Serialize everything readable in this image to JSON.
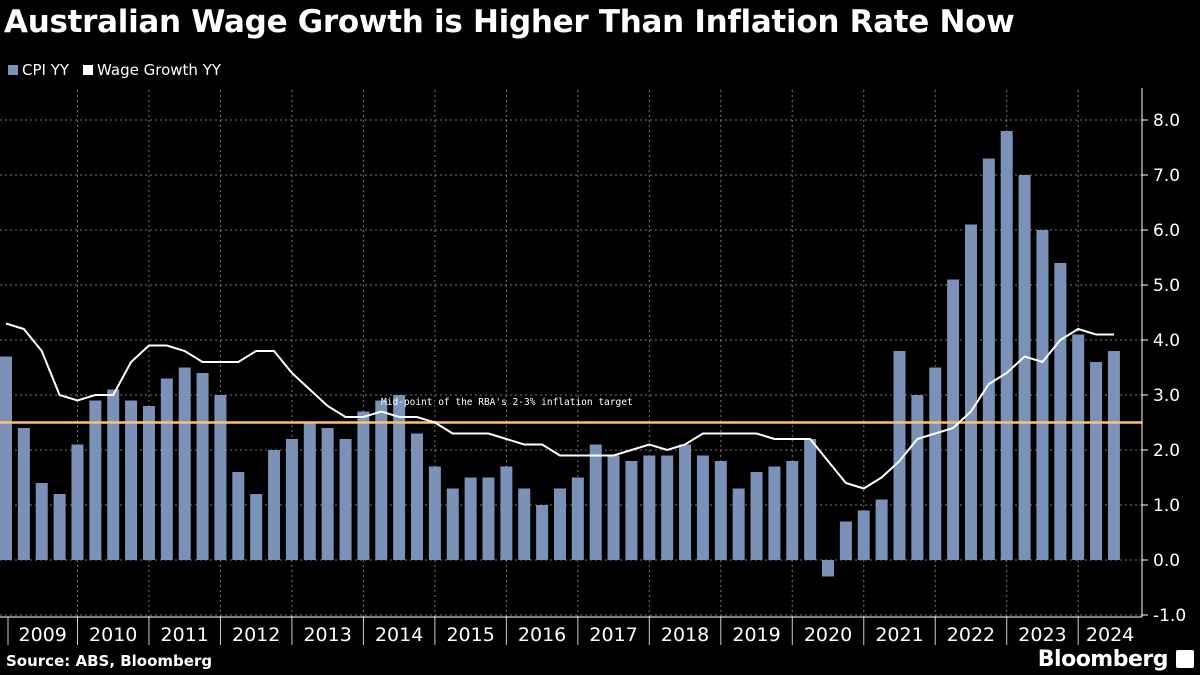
{
  "chart_data": {
    "type": "bar",
    "title": "Australian Wage Growth is Higher Than Inflation Rate Now",
    "source": "Source: ABS, Bloomberg",
    "brand": "Bloomberg",
    "year_labels": [
      "2009",
      "2010",
      "2011",
      "2012",
      "2013",
      "2014",
      "2015",
      "2016",
      "2017",
      "2018",
      "2019",
      "2020",
      "2021",
      "2022",
      "2023",
      "2024"
    ],
    "y_ticks": [
      "-1.0",
      "0.0",
      "1.0",
      "2.0",
      "3.0",
      "4.0",
      "5.0",
      "6.0",
      "7.0",
      "8.0"
    ],
    "ylim": [
      -1.0,
      8.5
    ],
    "grid": true,
    "legend_position": "top-left",
    "annotation": {
      "text": "Mid-point of the RBA's 2-3% inflation target",
      "value": 2.5
    },
    "x_range": [
      "2008 Q4",
      "2024 Q2"
    ],
    "series": [
      {
        "name": "CPI YY",
        "type": "bar",
        "color": "#7b91b8",
        "values": [
          3.7,
          2.4,
          1.4,
          1.2,
          2.1,
          2.9,
          3.1,
          2.9,
          2.8,
          3.3,
          3.5,
          3.4,
          3.0,
          1.6,
          1.2,
          2.0,
          2.2,
          2.5,
          2.4,
          2.2,
          2.7,
          2.9,
          3.0,
          2.3,
          1.7,
          1.3,
          1.5,
          1.5,
          1.7,
          1.3,
          1.0,
          1.3,
          1.5,
          2.1,
          1.9,
          1.8,
          1.9,
          1.9,
          2.1,
          1.9,
          1.8,
          1.3,
          1.6,
          1.7,
          1.8,
          2.2,
          -0.3,
          0.7,
          0.9,
          1.1,
          3.8,
          3.0,
          3.5,
          5.1,
          6.1,
          7.3,
          7.8,
          7.0,
          6.0,
          5.4,
          4.1,
          3.6,
          3.8
        ]
      },
      {
        "name": "Wage Growth YY",
        "type": "line",
        "color": "#ffffff",
        "values": [
          4.3,
          4.2,
          3.8,
          3.0,
          2.9,
          3.0,
          3.0,
          3.6,
          3.9,
          3.9,
          3.8,
          3.6,
          3.6,
          3.6,
          3.8,
          3.8,
          3.4,
          3.1,
          2.8,
          2.6,
          2.6,
          2.7,
          2.6,
          2.6,
          2.5,
          2.3,
          2.3,
          2.3,
          2.2,
          2.1,
          2.1,
          1.9,
          1.9,
          1.9,
          1.9,
          2.0,
          2.1,
          2.0,
          2.1,
          2.3,
          2.3,
          2.3,
          2.3,
          2.2,
          2.2,
          2.2,
          1.8,
          1.4,
          1.3,
          1.5,
          1.8,
          2.2,
          2.3,
          2.4,
          2.7,
          3.2,
          3.4,
          3.7,
          3.6,
          4.0,
          4.2,
          4.1,
          4.1
        ]
      }
    ],
    "target_line_color": "#f7c46c"
  }
}
